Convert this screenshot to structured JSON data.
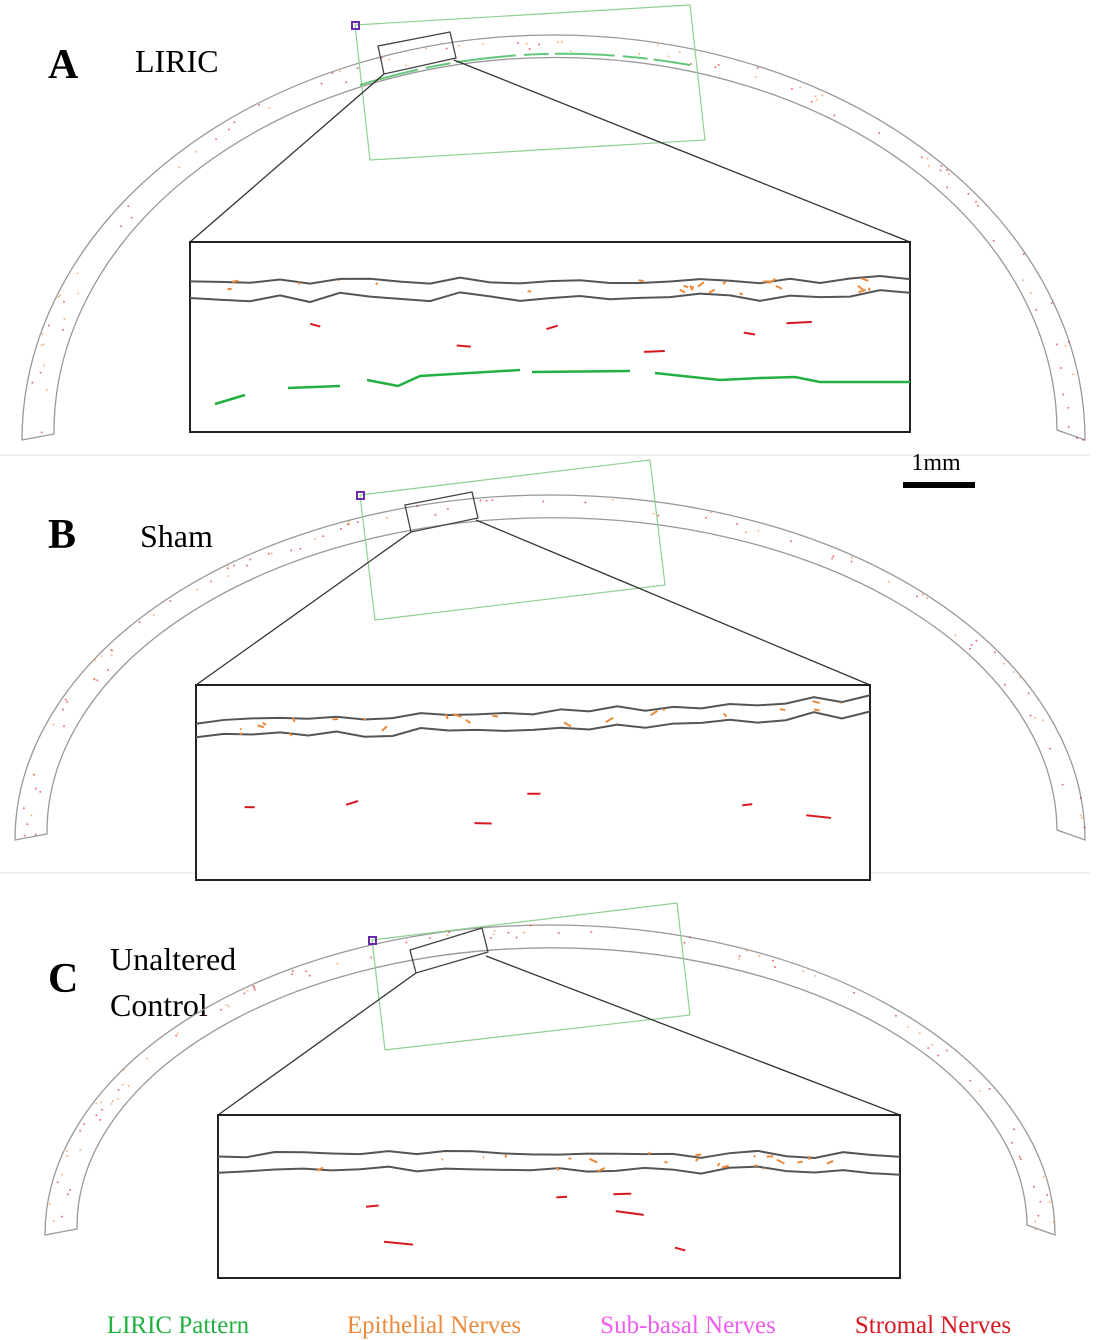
{
  "panels": [
    {
      "letter": "A",
      "label": [
        "LIRIC"
      ]
    },
    {
      "letter": "B",
      "label": [
        "Sham"
      ]
    },
    {
      "letter": "C",
      "label": [
        "Unaltered",
        "Control"
      ]
    }
  ],
  "scale_bar": "1mm",
  "legend": [
    {
      "label": "LIRIC Pattern",
      "color": "#22b040"
    },
    {
      "label": "Epithelial Nerves",
      "color": "#ec8a3c"
    },
    {
      "label": "Sub-basal Nerves",
      "color": "#ee5cee"
    },
    {
      "label": "Stromal Nerves",
      "color": "#d81820"
    }
  ]
}
